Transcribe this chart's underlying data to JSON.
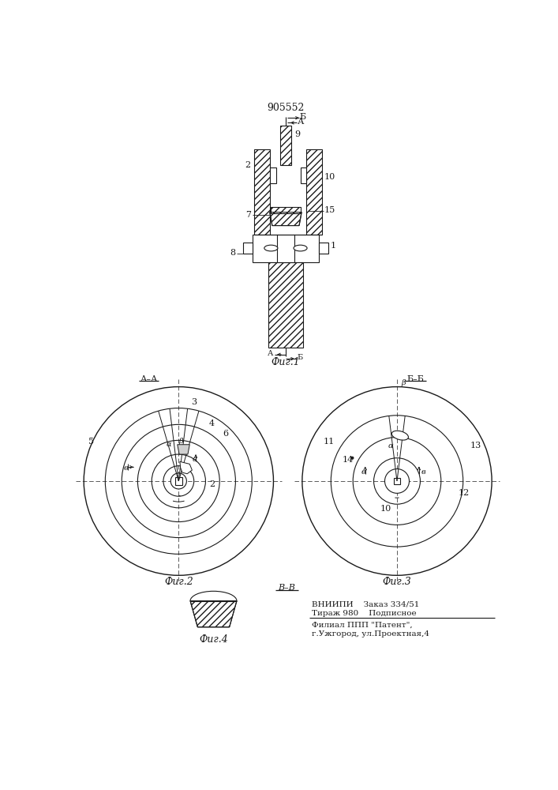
{
  "bg": "#ffffff",
  "lc": "#1a1a1a",
  "title": "905552",
  "bottom_line1": "ВНИИПИ    Заказ 334/51",
  "bottom_line2": "Тираж 980    Подписное",
  "bottom_line3": "Филиал ППП \"Патент\",",
  "bottom_line4": "г.Ужгород, ул.Проектная,4"
}
